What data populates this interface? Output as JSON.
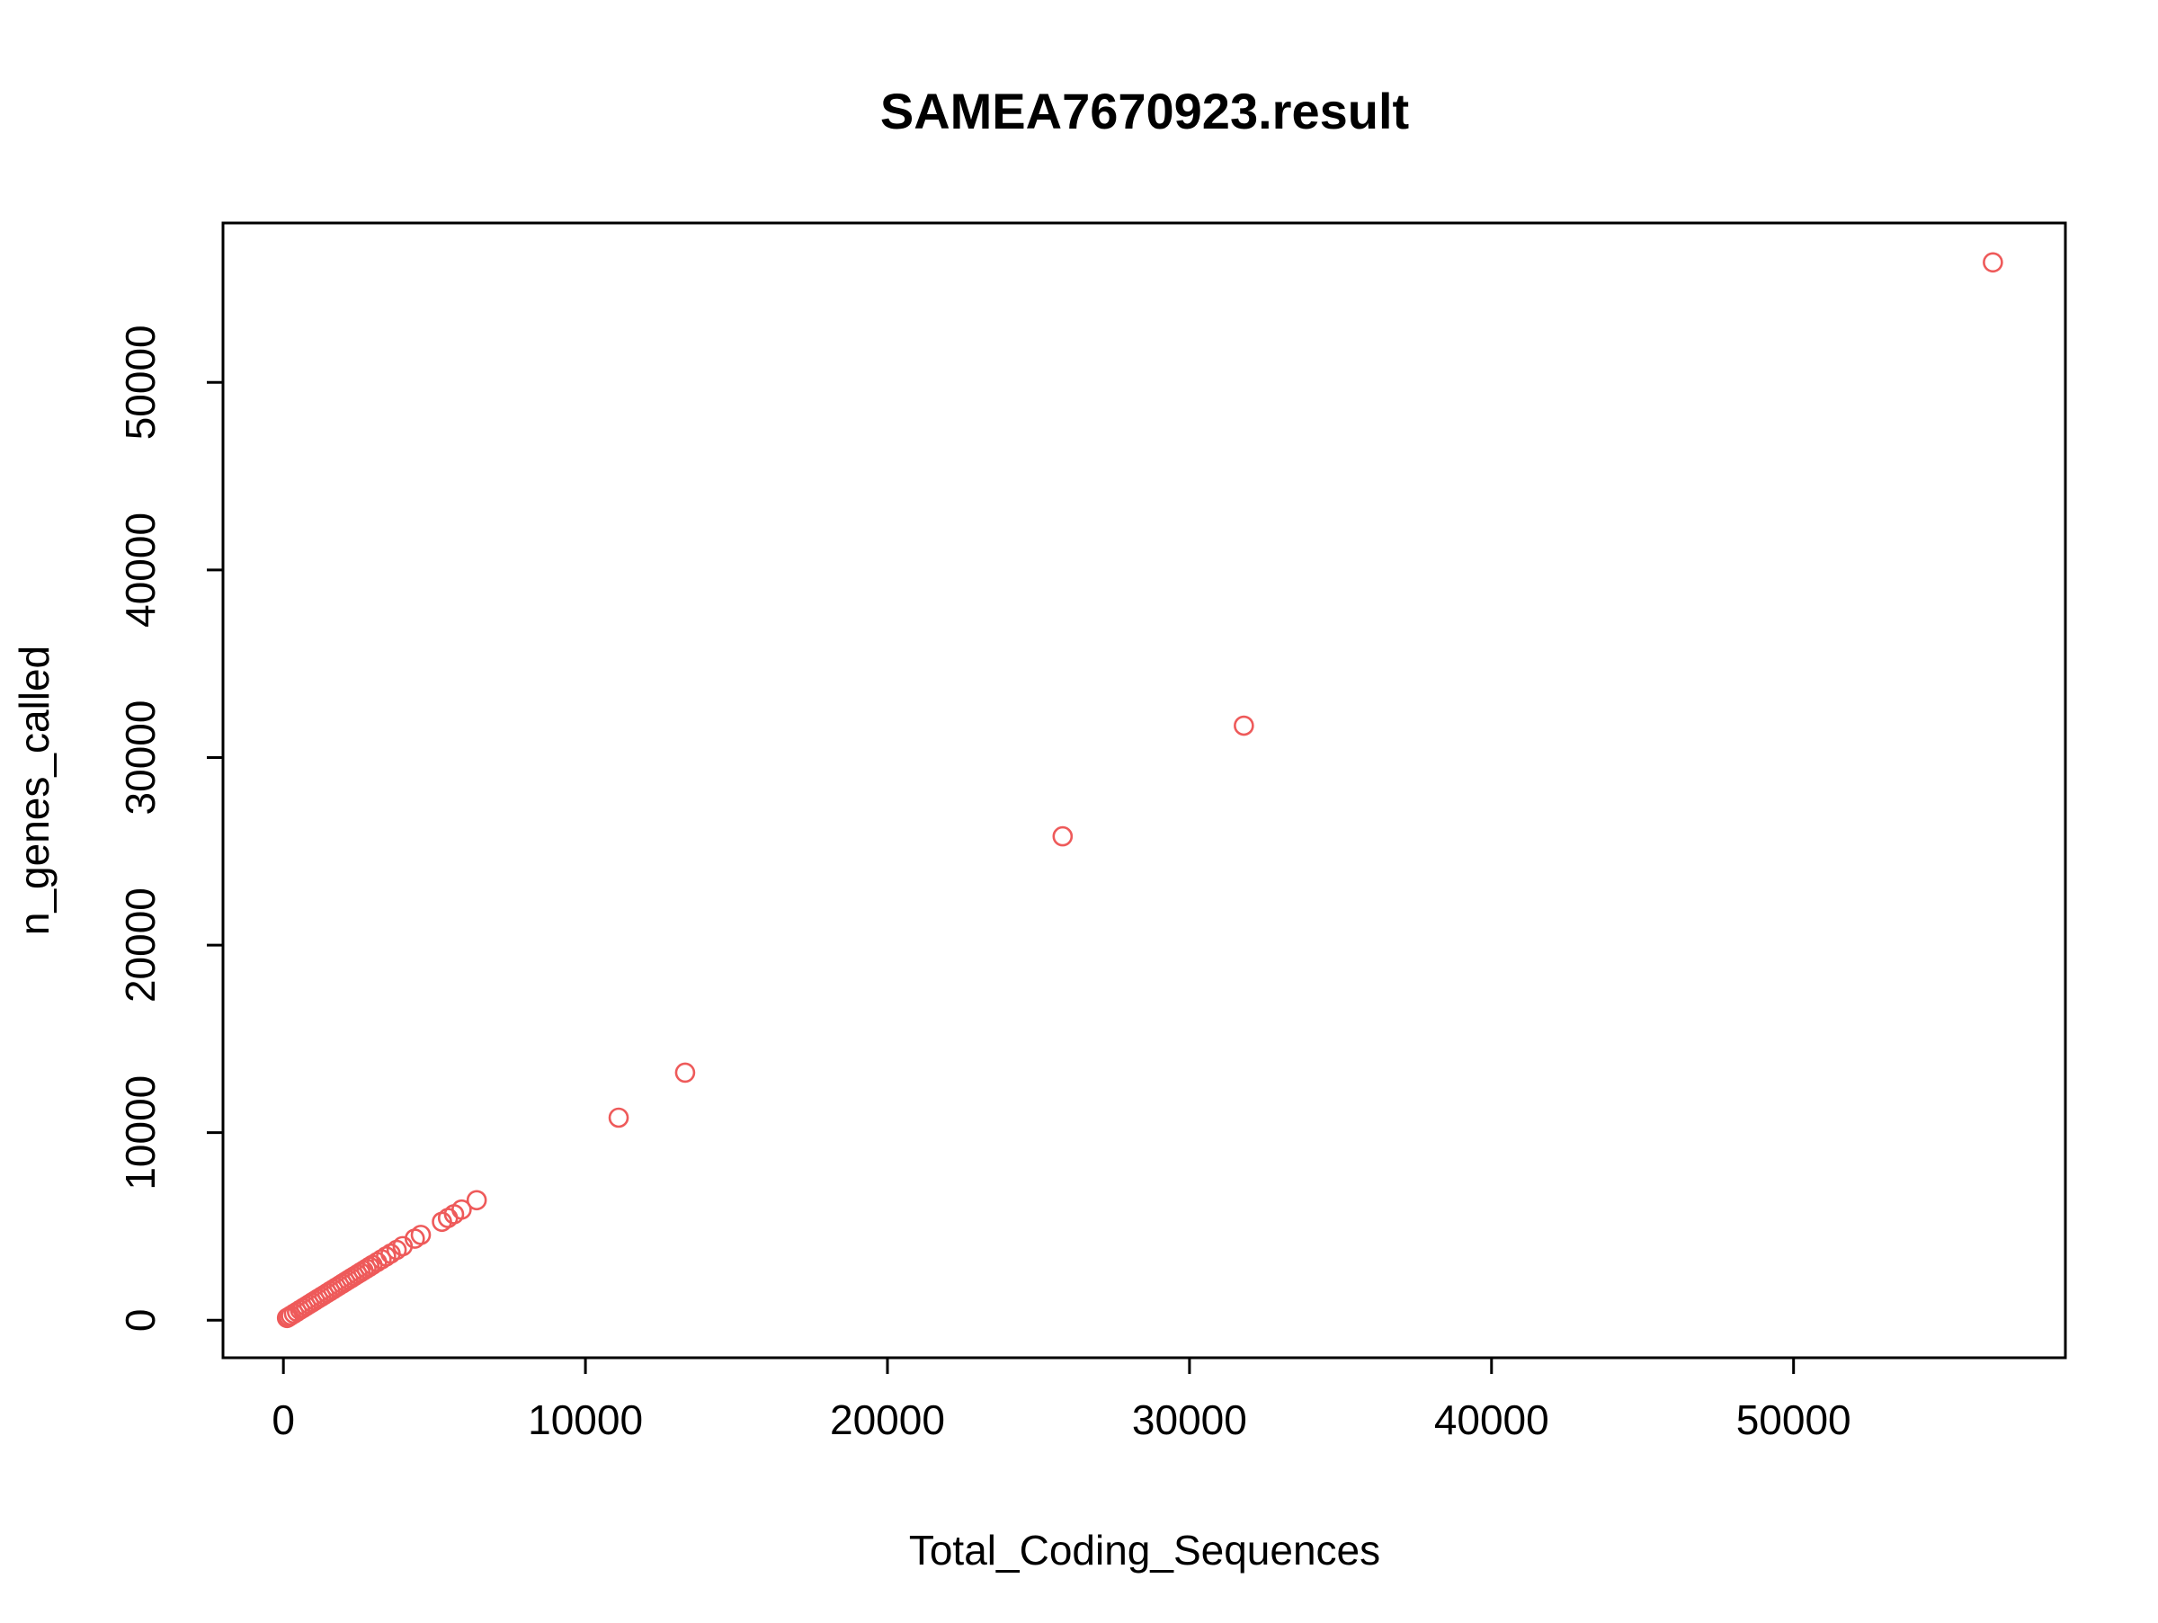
{
  "chart_data": {
    "type": "scatter",
    "title": "SAMEA7670923.result",
    "xlabel": "Total_Coding_Sequences",
    "ylabel": "n_genes_called",
    "xlim": [
      -2000,
      59000
    ],
    "ylim": [
      -2000,
      58500
    ],
    "xticks": [
      0,
      10000,
      20000,
      30000,
      40000,
      50000
    ],
    "yticks": [
      0,
      10000,
      20000,
      30000,
      40000,
      50000
    ],
    "grid": false,
    "point_color": "#ee5a5a",
    "marker": "open-circle",
    "series": [
      {
        "x": [
          56600,
          31800,
          25800,
          13300,
          11100,
          6400,
          5900,
          5650,
          5450,
          5250,
          4550,
          4350,
          3950,
          3750,
          3550,
          3400,
          3250,
          3100,
          2950,
          2850,
          2750,
          2650,
          2550,
          2450,
          2350,
          2250,
          2150,
          2050,
          1950,
          1850,
          1750,
          1650,
          1550,
          1450,
          1350,
          1250,
          1150,
          1050,
          950,
          850,
          750,
          650,
          550,
          450,
          350,
          250,
          180,
          120
        ],
        "y": [
          56400,
          31700,
          25800,
          13200,
          10800,
          6400,
          5900,
          5650,
          5450,
          5250,
          4550,
          4350,
          3950,
          3750,
          3550,
          3400,
          3250,
          3100,
          2950,
          2850,
          2750,
          2650,
          2550,
          2450,
          2350,
          2250,
          2150,
          2050,
          1950,
          1850,
          1750,
          1650,
          1550,
          1450,
          1350,
          1250,
          1150,
          1050,
          950,
          850,
          750,
          650,
          550,
          450,
          350,
          250,
          180,
          120
        ]
      }
    ]
  }
}
